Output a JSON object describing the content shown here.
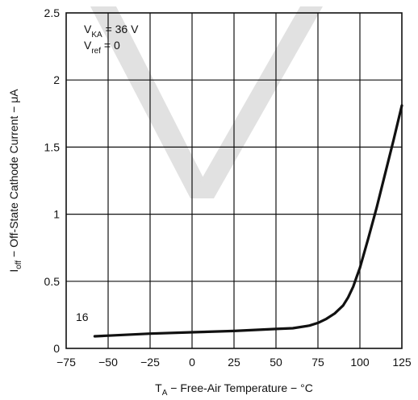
{
  "chart_data": {
    "type": "line",
    "xlabel": {
      "symbol": "T",
      "subscript": "A",
      "text": " − Free-Air Temperature − °C"
    },
    "ylabel": {
      "symbol": "I",
      "subscript": "off",
      "text": " − Off-State Cathode Current − μA"
    },
    "xlim": [
      -75,
      125
    ],
    "ylim": [
      0,
      2.5
    ],
    "x_ticks": [
      -75,
      -50,
      -25,
      0,
      25,
      50,
      75,
      100,
      125
    ],
    "x_tick_labels": [
      "−75",
      "−50",
      "−25",
      "0",
      "25",
      "50",
      "75",
      "100",
      "125"
    ],
    "y_ticks": [
      0,
      0.5,
      1,
      1.5,
      2,
      2.5
    ],
    "y_tick_labels": [
      "0",
      "0.5",
      "1",
      "1.5",
      "2",
      "2.5"
    ],
    "grid": true,
    "conditions": [
      {
        "symbol": "V",
        "subscript": "KA",
        "text": " = 36 V"
      },
      {
        "symbol": "V",
        "subscript": "ref",
        "text": " = 0"
      }
    ],
    "annotation": "16",
    "watermark_color": "#dcdcdc",
    "line_color": "#111111",
    "series": [
      {
        "x": [
          -58,
          -50,
          -25,
          0,
          25,
          50,
          60,
          70,
          75,
          80,
          85,
          90,
          93,
          96,
          98,
          100,
          105,
          110,
          115,
          120,
          125
        ],
        "y": [
          0.09,
          0.095,
          0.11,
          0.12,
          0.13,
          0.145,
          0.15,
          0.17,
          0.19,
          0.22,
          0.26,
          0.32,
          0.38,
          0.46,
          0.53,
          0.6,
          0.82,
          1.05,
          1.3,
          1.55,
          1.81
        ]
      }
    ]
  }
}
